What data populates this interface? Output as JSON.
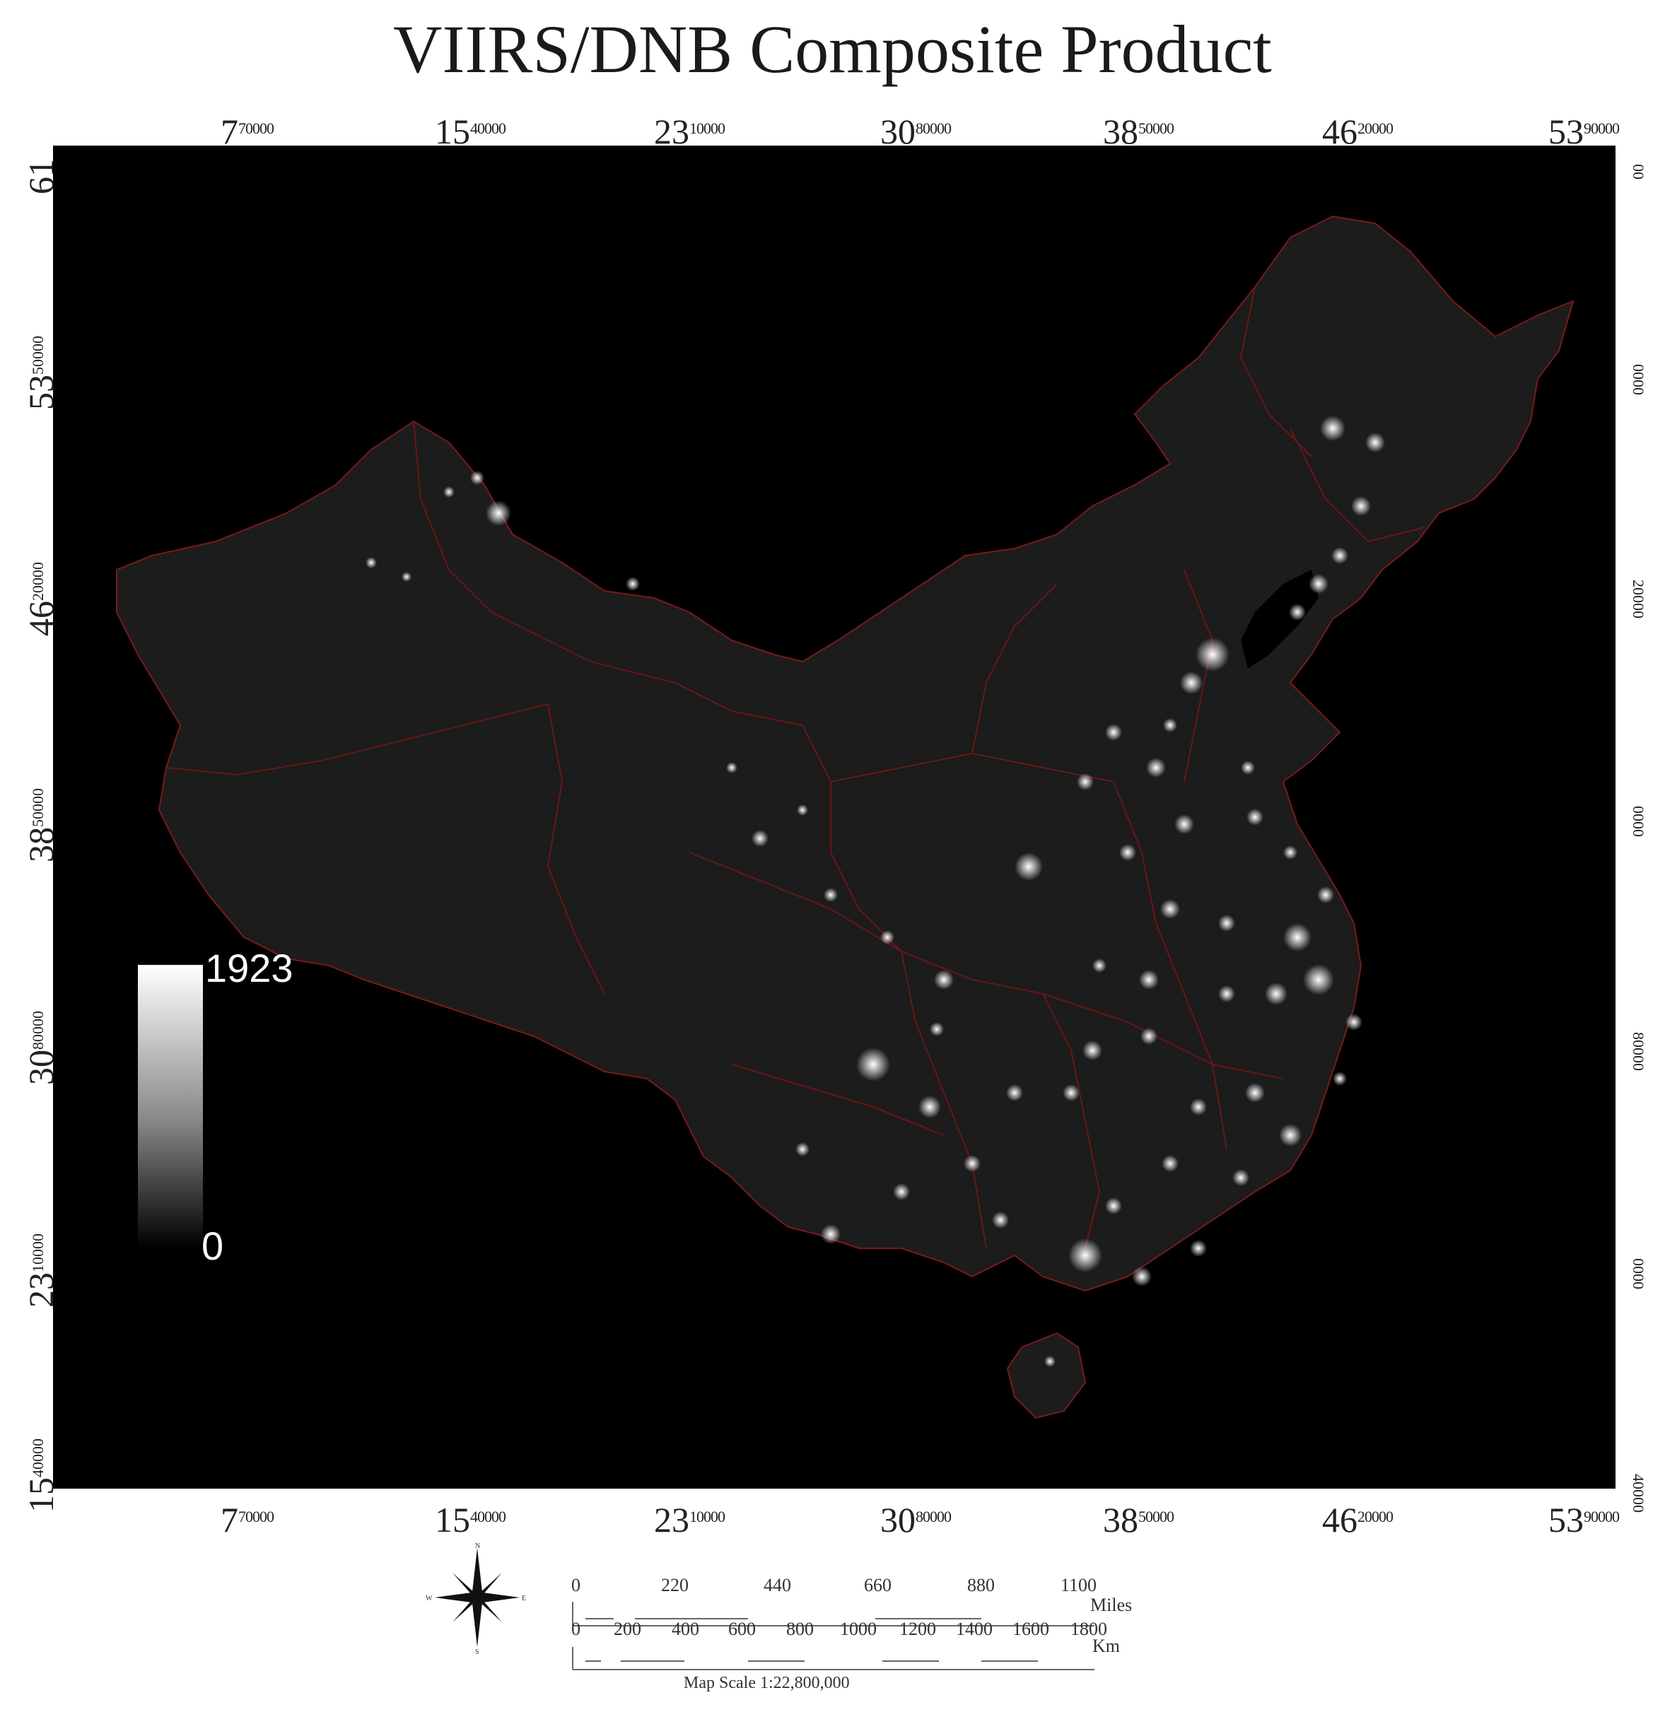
{
  "title": "VIIRS/DNB Composite Product",
  "top_axis": [
    {
      "base": "7",
      "sup": "70000"
    },
    {
      "base": "15",
      "sup": "40000"
    },
    {
      "base": "23",
      "sup": "10000"
    },
    {
      "base": "30",
      "sup": "80000"
    },
    {
      "base": "38",
      "sup": "50000"
    },
    {
      "base": "46",
      "sup": "20000"
    },
    {
      "base": "53",
      "sup": "90000"
    }
  ],
  "bottom_axis": [
    {
      "base": "7",
      "sup": "70000"
    },
    {
      "base": "15",
      "sup": "40000"
    },
    {
      "base": "23",
      "sup": "10000"
    },
    {
      "base": "30",
      "sup": "80000"
    },
    {
      "base": "38",
      "sup": "50000"
    },
    {
      "base": "46",
      "sup": "20000"
    },
    {
      "base": "53",
      "sup": "90000"
    }
  ],
  "left_axis": [
    {
      "base": "61",
      "sup": ""
    },
    {
      "base": "53",
      "sup": "50000"
    },
    {
      "base": "46",
      "sup": "20000"
    },
    {
      "base": "38",
      "sup": "50000"
    },
    {
      "base": "30",
      "sup": "80000"
    },
    {
      "base": "23",
      "sup": "10000"
    },
    {
      "base": "15",
      "sup": "40000"
    }
  ],
  "right_axis": [
    "00",
    "0000",
    "20000",
    "0000",
    "80000",
    "0000",
    "40000"
  ],
  "legend": {
    "max": "1923",
    "min": "0"
  },
  "compass": {
    "n": "N",
    "e": "E",
    "s": "S",
    "w": "W"
  },
  "scale_bar": {
    "miles_ticks": [
      "0",
      "220",
      "440",
      "660",
      "880",
      "1100"
    ],
    "miles_unit": "Miles",
    "km_ticks": [
      "0",
      "200",
      "400",
      "600",
      "800",
      "1000",
      "1200",
      "1400",
      "1600",
      "1800"
    ],
    "km_unit": "Km"
  },
  "map_scale": "Map Scale 1:22,800,000"
}
